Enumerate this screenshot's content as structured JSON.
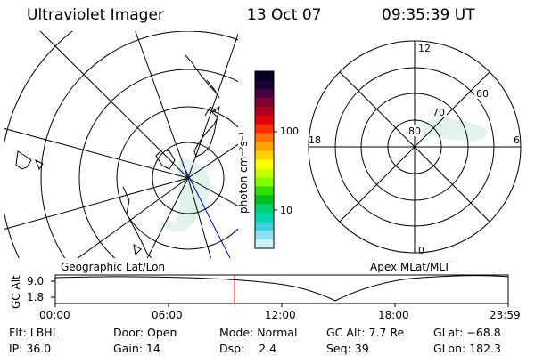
{
  "header": {
    "instrument": "Ultraviolet Imager",
    "date": "13 Oct 07",
    "time": "09:35:39 UT"
  },
  "left_map": {
    "label": "Geographic Lat/Lon"
  },
  "right_map": {
    "label": "Apex MLat/MLT",
    "mlt_labels": {
      "top": "12",
      "left": "18",
      "right": "6",
      "bottom": "0"
    },
    "lat_labels": [
      "60",
      "70",
      "80"
    ]
  },
  "colorbar": {
    "unit_label": "photon cm⁻²s⁻¹",
    "tick_labels": [
      "100",
      "10"
    ],
    "colors": [
      "#000020",
      "#1a0030",
      "#4a0040",
      "#800030",
      "#b00020",
      "#e00010",
      "#ff3000",
      "#ff7000",
      "#ffa000",
      "#ffd000",
      "#ffff00",
      "#c8ff00",
      "#80ff00",
      "#30e000",
      "#00c020",
      "#00d070",
      "#00d8b0",
      "#40d0e0",
      "#90e0f0",
      "#d0f0f8"
    ]
  },
  "altitude_plot": {
    "ylabel": "GC Alt",
    "ytick_top": "9.0",
    "ytick_bottom": "1.8",
    "xtick_labels": [
      "00:00",
      "06:00",
      "12:00",
      "18:00",
      "23:59"
    ],
    "current_time_color": "#ff0000"
  },
  "info": {
    "filter": "Flt: LBHL",
    "ip": "IP: 36.0",
    "door": "Door: Open",
    "gain": "Gain: 14",
    "mode": "Mode: Normal",
    "dsp": "Dsp:    2.4",
    "gc_alt": "GC Alt: 7.7 Re",
    "seq": "Seq: 39",
    "glat": "GLat: −68.8",
    "glon": "GLon: 182.3"
  }
}
